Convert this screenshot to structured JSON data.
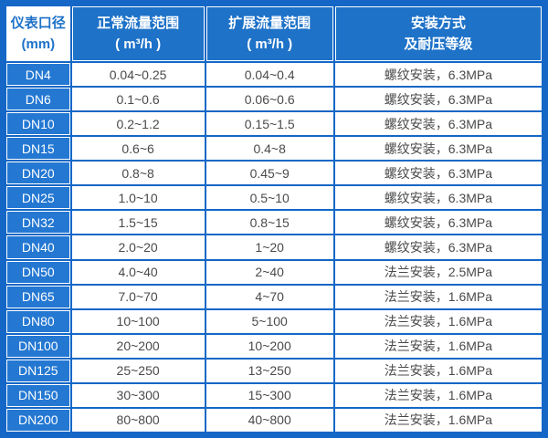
{
  "chart_data": {
    "type": "table",
    "title": "",
    "columns": [
      "仪表口径 (mm)",
      "正常流量范围 ( m³/h )",
      "扩展流量范围 ( m³/h )",
      "安装方式 及耐压等级"
    ],
    "rows": [
      [
        "DN4",
        "0.04~0.25",
        "0.04~0.4",
        "螺纹安装，6.3MPa"
      ],
      [
        "DN6",
        "0.1~0.6",
        "0.06~0.6",
        "螺纹安装，6.3MPa"
      ],
      [
        "DN10",
        "0.2~1.2",
        "0.15~1.5",
        "螺纹安装，6.3MPa"
      ],
      [
        "DN15",
        "0.6~6",
        "0.4~8",
        "螺纹安装，6.3MPa"
      ],
      [
        "DN20",
        "0.8~8",
        "0.45~9",
        "螺纹安装，6.3MPa"
      ],
      [
        "DN25",
        "1.0~10",
        "0.5~10",
        "螺纹安装，6.3MPa"
      ],
      [
        "DN32",
        "1.5~15",
        "0.8~15",
        "螺纹安装，6.3MPa"
      ],
      [
        "DN40",
        "2.0~20",
        "1~20",
        "螺纹安装，6.3MPa"
      ],
      [
        "DN50",
        "4.0~40",
        "2~40",
        "法兰安装，2.5MPa"
      ],
      [
        "DN65",
        "7.0~70",
        "4~70",
        "法兰安装，1.6MPa"
      ],
      [
        "DN80",
        "10~100",
        "5~100",
        "法兰安装，1.6MPa"
      ],
      [
        "DN100",
        "20~200",
        "10~200",
        "法兰安装，1.6MPa"
      ],
      [
        "DN125",
        "25~250",
        "13~250",
        "法兰安装，1.6MPa"
      ],
      [
        "DN150",
        "30~300",
        "15~300",
        "法兰安装，1.6MPa"
      ],
      [
        "DN200",
        "80~800",
        "40~800",
        "法兰安装，1.6MPa"
      ]
    ]
  },
  "header": {
    "col1": {
      "line1": "仪表口径",
      "line2": "(mm)"
    },
    "col2": {
      "line1": "正常流量范围",
      "line2": "( m³/h )"
    },
    "col3": {
      "line1": "扩展流量范围",
      "line2": "( m³/h )"
    },
    "col4": {
      "line1": "安装方式",
      "line2": "及耐压等级"
    }
  },
  "colors": {
    "grid_blue": "#1467c6",
    "header_blue": "#1e72c8",
    "label_blue": "#2478d2",
    "data_text": "#4a4a4a",
    "cell_white": "#ffffff"
  }
}
